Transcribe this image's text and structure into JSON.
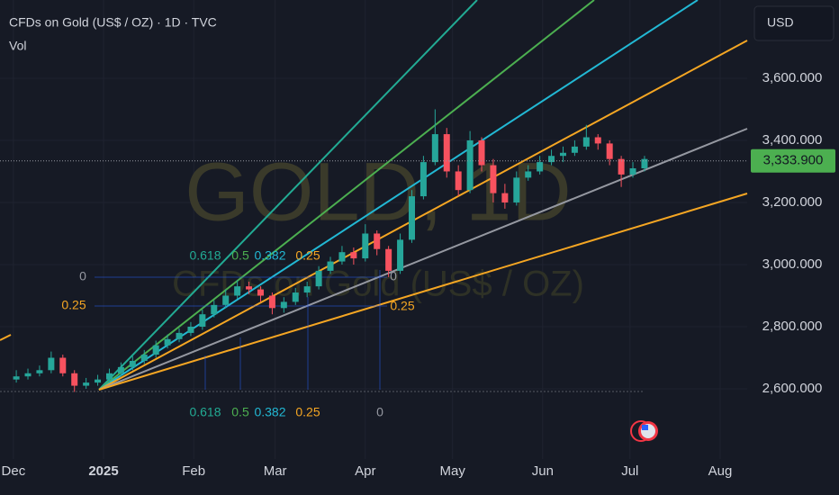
{
  "chart_data": {
    "type": "candlestick",
    "title": "CFDs on Gold (US$ / OZ) · 1D · TVC",
    "subtitle": "Vol",
    "watermark": [
      "GOLD, 1D",
      "CFDs on Gold (US$ / OZ)"
    ],
    "currency": "USD",
    "last_price": {
      "value": 3333.9,
      "label": "3,333.900"
    },
    "up_color": "#26a69a",
    "down_color": "#f7525f",
    "xlim": [
      -4.6,
      252.3
    ],
    "ylim": [
      2374,
      3852
    ],
    "xticks": [
      {
        "value": 0,
        "label": "Dec"
      },
      {
        "value": 31,
        "label": "2025"
      },
      {
        "value": 62,
        "label": "Feb"
      },
      {
        "value": 90,
        "label": "Mar"
      },
      {
        "value": 121,
        "label": "Apr"
      },
      {
        "value": 151,
        "label": "May"
      },
      {
        "value": 182,
        "label": "Jun"
      },
      {
        "value": 212,
        "label": "Jul"
      },
      {
        "value": 243,
        "label": "Aug"
      }
    ],
    "yticks": [
      {
        "value": 2600,
        "label": "2,600.000"
      },
      {
        "value": 2800,
        "label": "2,800.000"
      },
      {
        "value": 3000,
        "label": "3,000.000"
      },
      {
        "value": 3200,
        "label": "3,200.000"
      },
      {
        "value": 3400,
        "label": "3,400.000"
      },
      {
        "value": 3600,
        "label": "3,600.000"
      }
    ],
    "grid": true,
    "x": [
      1,
      5,
      9,
      13,
      17,
      21,
      25,
      29,
      33,
      37,
      41,
      45,
      49,
      53,
      57,
      61,
      65,
      69,
      73,
      77,
      81,
      85,
      89,
      93,
      97,
      101,
      105,
      109,
      113,
      117,
      121,
      125,
      129,
      133,
      137,
      141,
      145,
      149,
      153,
      157,
      161,
      165,
      169,
      173,
      177,
      181,
      185,
      189,
      193,
      197,
      201,
      205,
      209,
      213,
      217
    ],
    "open": [
      2630,
      2640,
      2650,
      2660,
      2700,
      2650,
      2610,
      2620,
      2630,
      2650,
      2670,
      2690,
      2710,
      2740,
      2760,
      2780,
      2800,
      2840,
      2870,
      2900,
      2930,
      2920,
      2900,
      2860,
      2880,
      2910,
      2930,
      2980,
      3010,
      3040,
      3020,
      3100,
      3050,
      2980,
      3080,
      3220,
      3330,
      3420,
      3300,
      3240,
      3400,
      3320,
      3230,
      3200,
      3280,
      3300,
      3330,
      3350,
      3360,
      3380,
      3410,
      3390,
      3340,
      3290,
      3310
    ],
    "high": [
      2660,
      2665,
      2675,
      2720,
      2710,
      2660,
      2635,
      2645,
      2665,
      2685,
      2705,
      2725,
      2755,
      2775,
      2795,
      2815,
      2855,
      2885,
      2920,
      2950,
      2945,
      2930,
      2910,
      2895,
      2925,
      2945,
      2995,
      3025,
      3060,
      3055,
      3130,
      3110,
      3060,
      3100,
      3240,
      3350,
      3500,
      3440,
      3320,
      3430,
      3410,
      3340,
      3260,
      3300,
      3320,
      3350,
      3370,
      3380,
      3400,
      3450,
      3420,
      3400,
      3350,
      3330,
      3350
    ],
    "low": [
      2620,
      2630,
      2640,
      2650,
      2640,
      2590,
      2600,
      2610,
      2620,
      2640,
      2660,
      2680,
      2700,
      2730,
      2750,
      2770,
      2790,
      2830,
      2860,
      2890,
      2905,
      2880,
      2840,
      2845,
      2870,
      2895,
      2920,
      2970,
      3000,
      3000,
      3010,
      3030,
      2960,
      2970,
      3070,
      3210,
      3320,
      3280,
      3220,
      3230,
      3300,
      3200,
      3180,
      3190,
      3270,
      3290,
      3320,
      3330,
      3350,
      3370,
      3370,
      3320,
      3250,
      3280,
      3300
    ],
    "close": [
      2640,
      2650,
      2660,
      2700,
      2650,
      2610,
      2620,
      2630,
      2650,
      2670,
      2690,
      2710,
      2740,
      2760,
      2780,
      2800,
      2840,
      2870,
      2900,
      2930,
      2920,
      2900,
      2860,
      2880,
      2910,
      2930,
      2980,
      3010,
      3040,
      3020,
      3100,
      3050,
      2980,
      3080,
      3220,
      3330,
      3420,
      3300,
      3240,
      3400,
      3320,
      3230,
      3200,
      3280,
      3300,
      3330,
      3350,
      3360,
      3380,
      3410,
      3390,
      3340,
      3290,
      3310,
      3340
    ],
    "annotations": {
      "fan_top": [
        "0.618",
        "0.5",
        "0.382",
        "0.25"
      ],
      "fan_bottom": [
        "0.618",
        "0.5",
        "0.382",
        "0.25",
        "0"
      ],
      "fan_left": [
        "0",
        "0.25"
      ],
      "fan_right": [
        "0",
        "0.25"
      ]
    }
  }
}
